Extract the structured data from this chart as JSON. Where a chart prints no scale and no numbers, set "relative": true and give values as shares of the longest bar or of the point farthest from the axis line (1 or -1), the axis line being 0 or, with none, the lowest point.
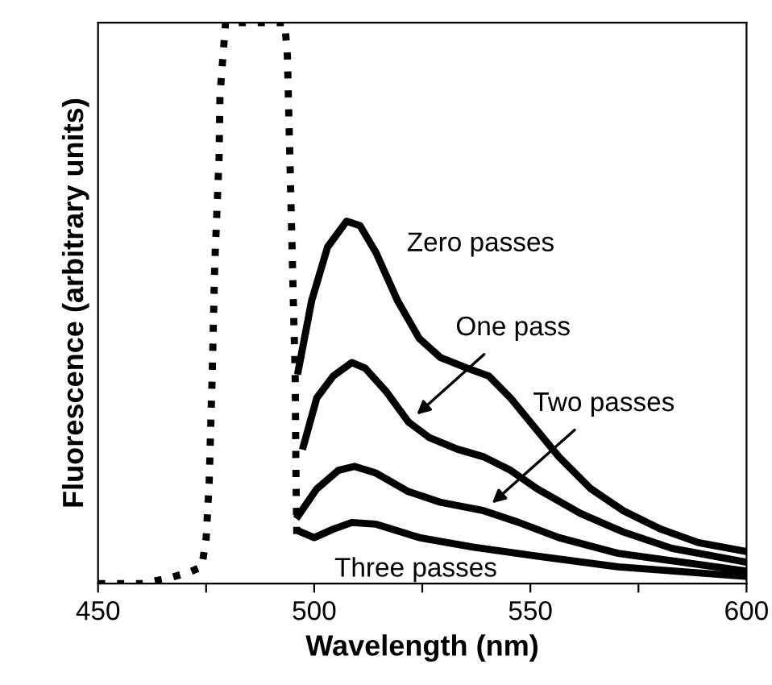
{
  "chart_data": {
    "type": "line",
    "relative": true,
    "xlabel": "Wavelength (nm)",
    "ylabel": "Fluorescence (arbitrary units)",
    "xlim": [
      450,
      600
    ],
    "xticks": [
      450,
      {
        "value": 475,
        "label": null
      },
      500,
      {
        "value": 525,
        "label": null
      },
      550,
      {
        "value": 575,
        "label": null
      },
      600
    ],
    "grid": false,
    "legend": false,
    "marker": "none",
    "series": [
      {
        "color": "#000000",
        "line_style": "dotted",
        "x": [
          450,
          460,
          466.5,
          471,
          474,
          475,
          475.7,
          476.4,
          477,
          478,
          478.2,
          479.5,
          486,
          493.2,
          493.8,
          494.4,
          495.0,
          495.6,
          495.8,
          496.0
        ],
        "values": [
          0,
          0,
          0.01,
          0.02,
          0.03,
          0.08,
          0.18,
          0.37,
          0.57,
          0.76,
          0.87,
          1.0,
          1.0,
          1.0,
          0.94,
          0.75,
          0.56,
          0.37,
          0.18,
          0.08
        ]
      },
      {
        "color": "#000000",
        "line_style": "solid",
        "x": [
          496.3,
          499.4,
          503.1,
          507.5,
          510.6,
          514.3,
          519.3,
          524.3,
          529.2,
          535.4,
          540.4,
          545.4,
          550.4,
          556.6,
          564,
          571.5,
          580.2,
          588.9,
          599.5
        ],
        "values": [
          0.379,
          0.504,
          0.6,
          0.646,
          0.638,
          0.59,
          0.504,
          0.437,
          0.403,
          0.384,
          0.37,
          0.331,
          0.284,
          0.226,
          0.169,
          0.13,
          0.097,
          0.073,
          0.058
        ]
      },
      {
        "color": "#000000",
        "line_style": "solid",
        "x": [
          497.5,
          500.6,
          504.4,
          508.7,
          511.8,
          516.8,
          521.8,
          526.7,
          533,
          539.2,
          545.4,
          551.6,
          561.6,
          571.5,
          582.7,
          599.5
        ],
        "values": [
          0.245,
          0.331,
          0.37,
          0.394,
          0.384,
          0.341,
          0.288,
          0.26,
          0.24,
          0.226,
          0.202,
          0.169,
          0.125,
          0.092,
          0.063,
          0.039
        ]
      },
      {
        "color": "#000000",
        "line_style": "solid",
        "x": [
          496.3,
          500.6,
          505.6,
          509.3,
          514.3,
          521.8,
          529.2,
          539.2,
          546.6,
          556.6,
          570.3,
          599.5
        ],
        "values": [
          0.121,
          0.169,
          0.202,
          0.209,
          0.197,
          0.164,
          0.145,
          0.13,
          0.111,
          0.082,
          0.054,
          0.023
        ]
      },
      {
        "color": "#000000",
        "line_style": "solid",
        "x": [
          496.9,
          500,
          504.4,
          508.7,
          514.3,
          524.3,
          536.7,
          551.6,
          570.3,
          599.5
        ],
        "values": [
          0.092,
          0.082,
          0.097,
          0.109,
          0.106,
          0.082,
          0.065,
          0.049,
          0.03,
          0.013
        ]
      }
    ],
    "annotations": [
      "Zero passes",
      {
        "text": "One pass",
        "x": 521.8,
        "y": 0.288
      },
      {
        "text": "Two passes",
        "x": 539.2,
        "y": 0.13
      },
      "Three passes"
    ]
  }
}
